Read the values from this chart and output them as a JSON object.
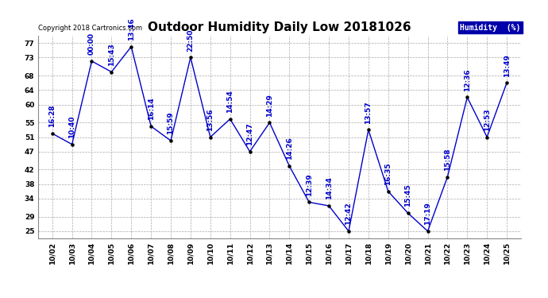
{
  "title": "Outdoor Humidity Daily Low 20181026",
  "copyright": "Copyright 2018 Cartronics.com",
  "legend_label": "Humidity  (%)",
  "x_labels": [
    "10/02",
    "10/03",
    "10/04",
    "10/05",
    "10/06",
    "10/07",
    "10/08",
    "10/09",
    "10/10",
    "10/11",
    "10/12",
    "10/13",
    "10/14",
    "10/15",
    "10/16",
    "10/17",
    "10/18",
    "10/19",
    "10/20",
    "10/21",
    "10/22",
    "10/23",
    "10/24",
    "10/25"
  ],
  "y_values": [
    52,
    49,
    72,
    69,
    76,
    54,
    50,
    73,
    51,
    56,
    47,
    55,
    43,
    33,
    32,
    25,
    53,
    36,
    30,
    25,
    40,
    62,
    51,
    66
  ],
  "time_labels": [
    "16:28",
    "10:40",
    "00:00",
    "15:43",
    "13:46",
    "16:14",
    "15:59",
    "22:50",
    "13:56",
    "14:54",
    "12:47",
    "14:29",
    "14:26",
    "12:39",
    "14:34",
    "12:42",
    "13:57",
    "16:35",
    "15:45",
    "17:19",
    "15:58",
    "12:36",
    "12:53",
    "13:49"
  ],
  "line_color": "#0000cc",
  "marker_color": "#000000",
  "background_color": "#ffffff",
  "grid_color": "#aaaaaa",
  "ylim": [
    23,
    79
  ],
  "yticks": [
    25,
    29,
    34,
    38,
    42,
    47,
    51,
    55,
    60,
    64,
    68,
    73,
    77
  ],
  "title_fontsize": 11,
  "label_fontsize": 6.5,
  "tick_fontsize": 6.5,
  "copyright_fontsize": 6
}
